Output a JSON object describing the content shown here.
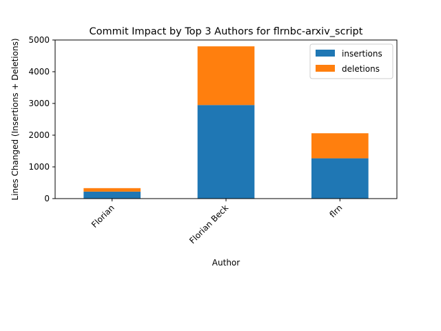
{
  "chart_data": {
    "type": "bar",
    "stacked": true,
    "title": "Commit Impact by Top 3 Authors for flrnbc-arxiv_script",
    "xlabel": "Author",
    "ylabel": "Lines Changed (Insertions + Deletions)",
    "categories": [
      "Florian",
      "Florian Beck",
      "flrn"
    ],
    "series": [
      {
        "name": "insertions",
        "color": "#1f77b4",
        "values": [
          220,
          2950,
          1270
        ]
      },
      {
        "name": "deletions",
        "color": "#ff7f0e",
        "values": [
          110,
          1850,
          790
        ]
      }
    ],
    "ylim": [
      0,
      5000
    ],
    "yticks": [
      0,
      1000,
      2000,
      3000,
      4000,
      5000
    ],
    "grid": false,
    "legend_position": "top-right"
  }
}
